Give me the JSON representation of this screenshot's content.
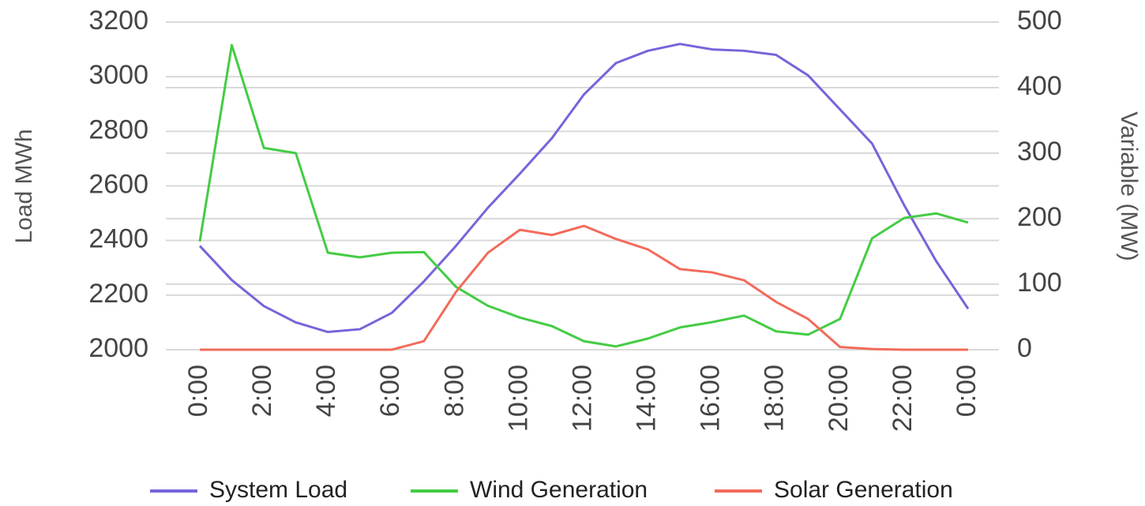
{
  "chart_data": {
    "type": "line",
    "ylabel": "Load MWh",
    "y2label": "Variable (MW)",
    "categories": [
      "0:00",
      null,
      "2:00",
      null,
      "4:00",
      null,
      "6:00",
      null,
      "8:00",
      null,
      "10:00",
      null,
      "12:00",
      null,
      "14:00",
      null,
      "16:00",
      null,
      "18:00",
      null,
      "20:00",
      null,
      "22:00",
      null,
      "0:00"
    ],
    "ylim": [
      2000,
      3200
    ],
    "yticks": [
      2000,
      2200,
      2400,
      2600,
      2800,
      3000,
      3200
    ],
    "y2lim": [
      0,
      500
    ],
    "y2ticks": [
      0,
      100,
      200,
      300,
      400,
      500
    ],
    "grid": true,
    "legend": "bottom",
    "series": [
      {
        "name": "System Load",
        "color": "#7565d9",
        "axis": "y",
        "values": [
          2380,
          2255,
          2160,
          2100,
          2065,
          2075,
          2135,
          2250,
          2380,
          2520,
          2645,
          2775,
          2935,
          3050,
          3095,
          3120,
          3100,
          3095,
          3080,
          3005,
          2880,
          2755,
          2530,
          2325,
          2150
        ]
      },
      {
        "name": "Wind Generation",
        "color": "#44cc44",
        "axis": "y2",
        "values": [
          165,
          465,
          308,
          300,
          148,
          141,
          148,
          149,
          96,
          67,
          49,
          36,
          13,
          5,
          17,
          34,
          42,
          52,
          28,
          23,
          47,
          170,
          201,
          208,
          194
        ]
      },
      {
        "name": "Solar Generation",
        "color": "#f26b5b",
        "axis": "y2",
        "values": [
          0,
          0,
          0,
          0,
          0,
          0,
          0,
          13,
          88,
          148,
          183,
          175,
          189,
          169,
          153,
          123,
          118,
          106,
          73,
          47,
          4,
          1,
          0,
          0,
          0
        ]
      }
    ]
  }
}
